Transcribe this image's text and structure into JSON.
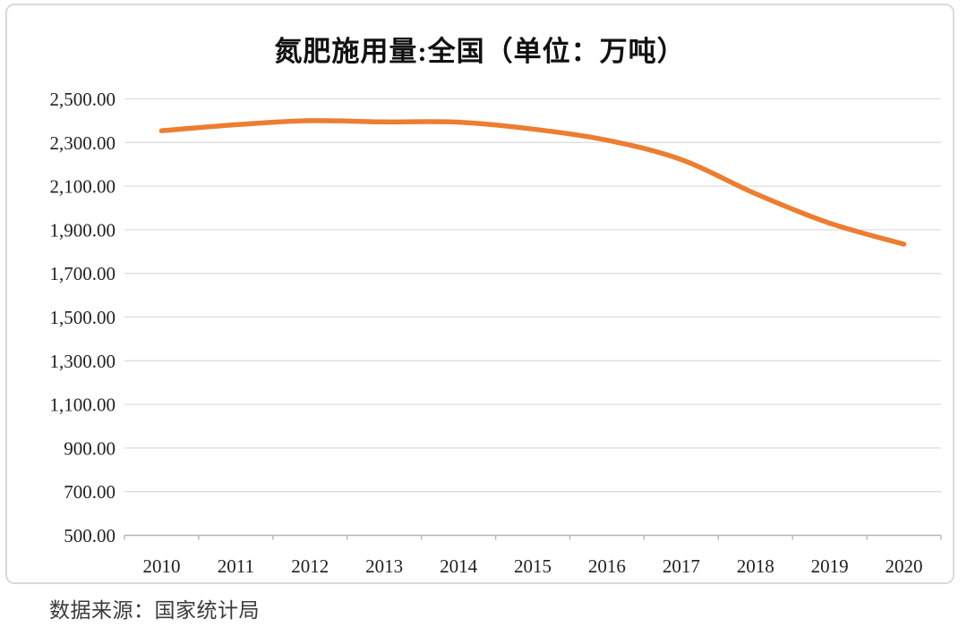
{
  "page": {
    "background": "#ffffff",
    "card_border_color": "#d9d9d9"
  },
  "chart_data": {
    "type": "line",
    "title": "氮肥施用量:全国（单位：万吨）",
    "xlabel": "",
    "ylabel": "",
    "categories": [
      "2010",
      "2011",
      "2012",
      "2013",
      "2014",
      "2015",
      "2016",
      "2017",
      "2018",
      "2019",
      "2020"
    ],
    "series": [
      {
        "name": "氮肥施用量:全国",
        "color": "#ED7D31",
        "smooth": true,
        "values": [
          2353.7,
          2381.4,
          2399.9,
          2394.2,
          2392.9,
          2361.6,
          2310.5,
          2221.8,
          2065.4,
          1930.2,
          1834.2
        ]
      }
    ],
    "ylim": [
      500,
      2500
    ],
    "ytick_step": 200,
    "ytick_labels": [
      "500.00",
      "700.00",
      "900.00",
      "1,100.00",
      "1,300.00",
      "1,500.00",
      "1,700.00",
      "1,900.00",
      "2,100.00",
      "2,300.00",
      "2,500.00"
    ],
    "grid": true,
    "gridline_color": "#dddddd",
    "axis_color": "#b5b5b5",
    "legend_position": "none"
  },
  "footer": {
    "source_label": "数据来源：国家统计局"
  }
}
